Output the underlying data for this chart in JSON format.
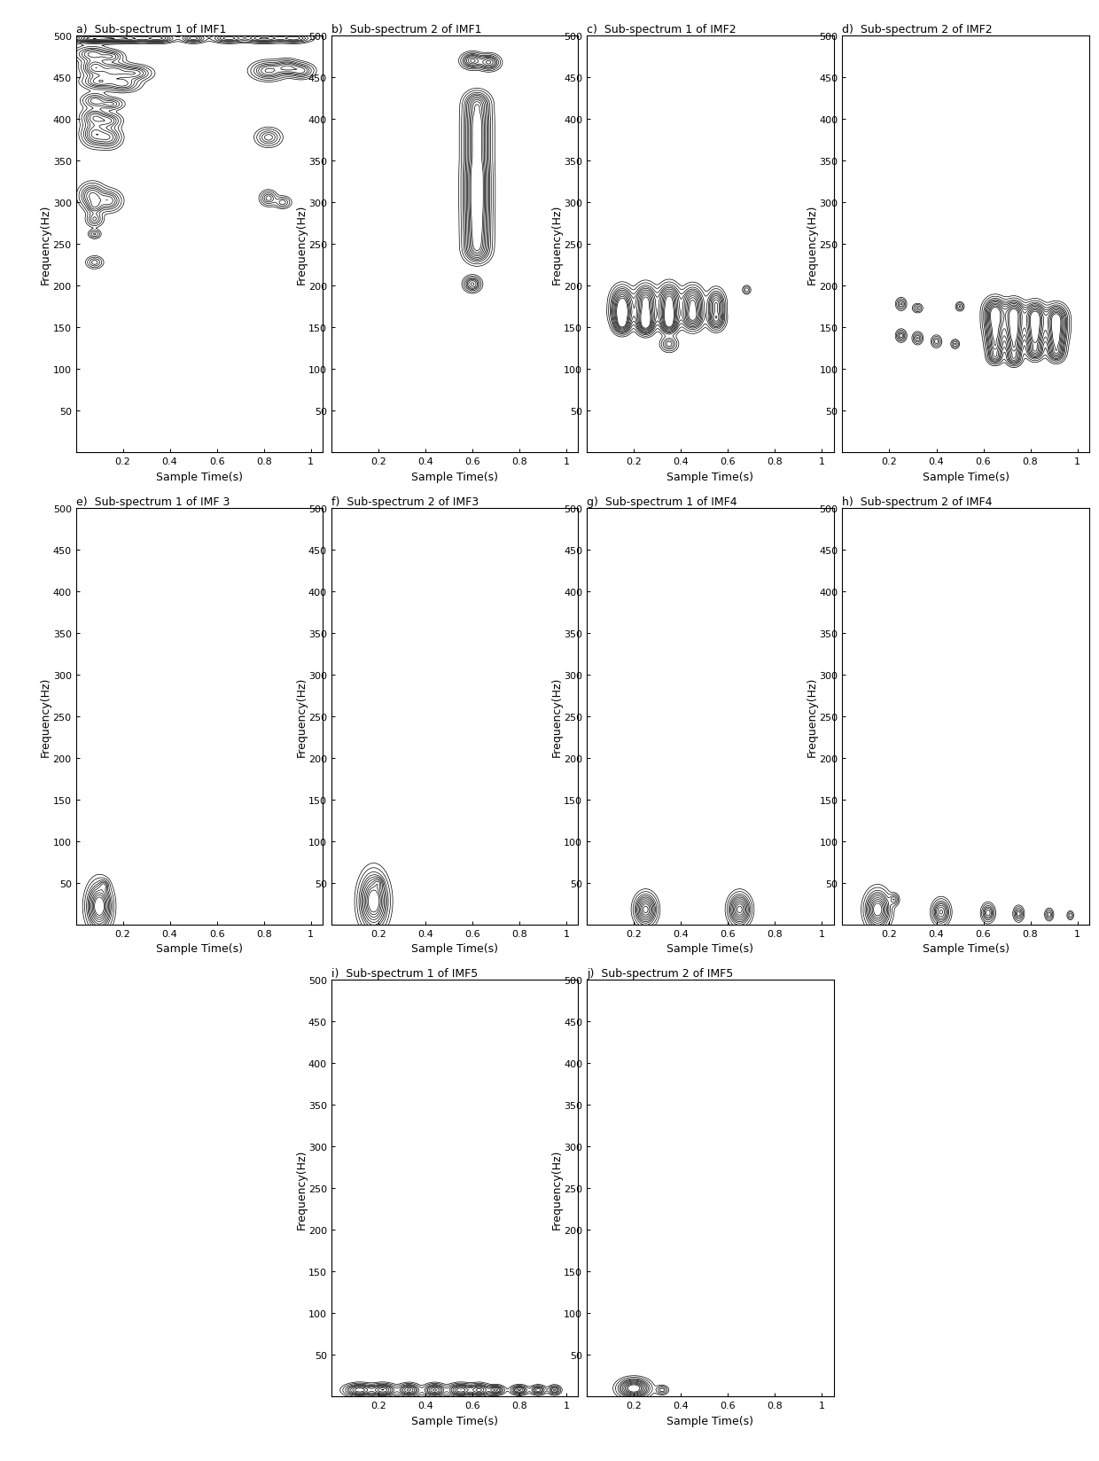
{
  "titles": [
    "Sub-spectrum 1 of IMF1",
    "Sub-spectrum 2 of IMF1",
    "Sub-spectrum 1 of IMF2",
    "Sub-spectrum 2 of IMF2",
    "Sub-spectrum 1 of IMF 3",
    "Sub-spectrum 2 of IMF3",
    "Sub-spectrum 1 of IMF4",
    "Sub-spectrum 2 of IMF4",
    "Sub-spectrum 1 of IMF5",
    "Sub-spectrum 2 of IMF5"
  ],
  "labels": [
    "a)",
    "b)",
    "c)",
    "d)",
    "e)",
    "f)",
    "g)",
    "h)",
    "i)",
    "j)"
  ],
  "xlabel": "Sample Time(s)",
  "ylabel": "Frequency(Hz)",
  "xlim": [
    0.0,
    1.05
  ],
  "ylim": [
    0,
    500
  ],
  "xticks": [
    0.2,
    0.4,
    0.6,
    0.8,
    1.0
  ],
  "yticks": [
    50,
    100,
    150,
    200,
    250,
    300,
    350,
    400,
    450,
    500
  ],
  "background_color": "#ffffff"
}
